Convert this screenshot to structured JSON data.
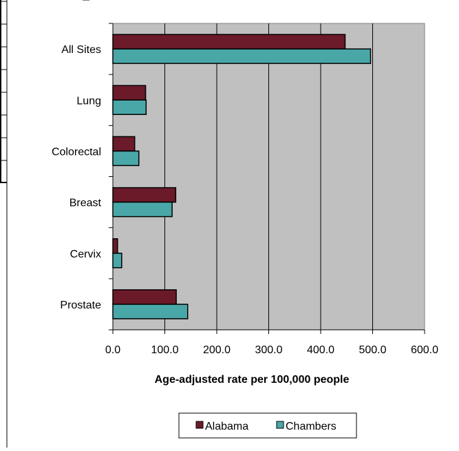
{
  "chart_data": {
    "type": "bar",
    "orientation": "horizontal",
    "categories": [
      "All Sites",
      "Lung",
      "Colorectal",
      "Breast",
      "Cervix",
      "Prostate"
    ],
    "series": [
      {
        "name": "Alabama",
        "values": [
          447,
          63,
          42,
          121,
          9,
          122
        ],
        "color": "#6B1A2A"
      },
      {
        "name": "Chambers",
        "values": [
          496,
          64,
          50,
          114,
          17,
          144
        ],
        "color": "#4AA7A8"
      }
    ],
    "xlabel": "Age-adjusted rate per 100,000 people",
    "xlim": [
      0,
      600
    ],
    "xticks": [
      "0.0",
      "100.0",
      "200.0",
      "300.0",
      "400.0",
      "500.0",
      "600.0"
    ],
    "grid": true,
    "plot_background": "#C0C0C0",
    "legend_position": "bottom"
  }
}
